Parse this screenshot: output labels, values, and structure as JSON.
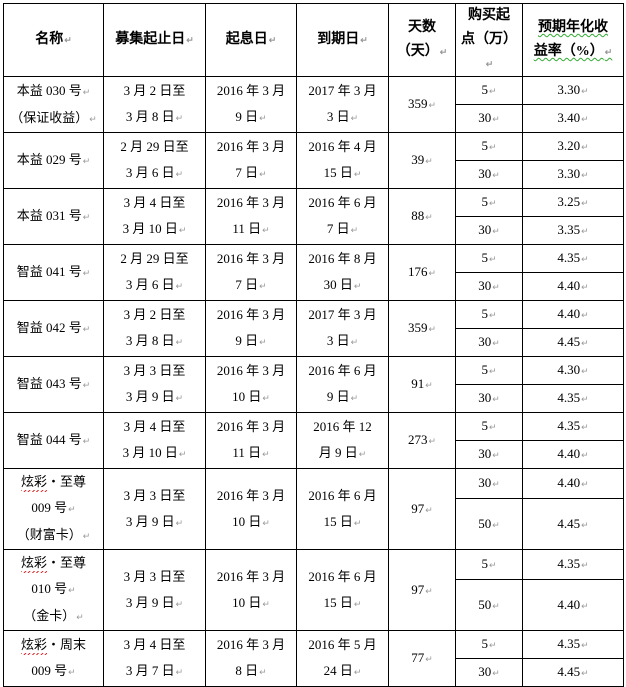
{
  "headers": [
    "名称",
    "募集起止日",
    "起息日",
    "到期日",
    [
      "天数",
      "（天）"
    ],
    [
      "购买起",
      "点（万）"
    ],
    [
      "预期年化收",
      "益率（%）"
    ]
  ],
  "products": [
    {
      "name": [
        "本益 030 号",
        "（保证收益）"
      ],
      "raise": [
        "3 月 2 日至",
        "3 月 8 日"
      ],
      "start": [
        "2016 年 3 月",
        "9 日"
      ],
      "maturity": [
        "2017 年 3 月",
        "3 日"
      ],
      "days": "359",
      "tiers": [
        {
          "min": "5",
          "rate": "3.30"
        },
        {
          "min": "30",
          "rate": "3.40"
        }
      ]
    },
    {
      "name": [
        "本益 029 号"
      ],
      "raise": [
        "2 月 29 日至",
        "3 月 6 日"
      ],
      "start": [
        "2016 年 3 月",
        "7 日"
      ],
      "maturity": [
        "2016 年 4 月",
        "15 日"
      ],
      "days": "39",
      "tiers": [
        {
          "min": "5",
          "rate": "3.20"
        },
        {
          "min": "30",
          "rate": "3.30"
        }
      ]
    },
    {
      "name": [
        "本益 031 号"
      ],
      "raise": [
        "3 月 4 日至",
        "3 月 10 日"
      ],
      "start": [
        "2016 年 3 月",
        "11 日"
      ],
      "maturity": [
        "2016 年 6 月",
        "7 日"
      ],
      "days": "88",
      "tiers": [
        {
          "min": "5",
          "rate": "3.25"
        },
        {
          "min": "30",
          "rate": "3.35"
        }
      ]
    },
    {
      "name": [
        "智益 041 号"
      ],
      "raise": [
        "2 月 29 日至",
        "3 月 6 日"
      ],
      "start": [
        "2016 年 3 月",
        "7 日"
      ],
      "maturity": [
        "2016 年 8 月",
        "30 日"
      ],
      "days": "176",
      "tiers": [
        {
          "min": "5",
          "rate": "4.35"
        },
        {
          "min": "30",
          "rate": "4.40"
        }
      ]
    },
    {
      "name": [
        "智益 042 号"
      ],
      "raise": [
        "3 月 2 日至",
        "3 月 8 日"
      ],
      "start": [
        "2016 年 3 月",
        "9 日"
      ],
      "maturity": [
        "2017 年 3 月",
        "3 日"
      ],
      "days": "359",
      "tiers": [
        {
          "min": "5",
          "rate": "4.40"
        },
        {
          "min": "30",
          "rate": "4.45"
        }
      ]
    },
    {
      "name": [
        "智益 043 号"
      ],
      "raise": [
        "3 月 3 日至",
        "3 月 9 日"
      ],
      "start": [
        "2016 年 3 月",
        "10 日"
      ],
      "maturity": [
        "2016 年 6 月",
        "9 日"
      ],
      "days": "91",
      "tiers": [
        {
          "min": "5",
          "rate": "4.30"
        },
        {
          "min": "30",
          "rate": "4.35"
        }
      ]
    },
    {
      "name": [
        "智益 044 号"
      ],
      "raise": [
        "3 月 4 日至",
        "3 月 10 日"
      ],
      "start": [
        "2016 年 3 月",
        "11 日"
      ],
      "maturity": [
        "2016 年 12",
        "月 9 日"
      ],
      "days": "273",
      "tiers": [
        {
          "min": "5",
          "rate": "4.35"
        },
        {
          "min": "30",
          "rate": "4.40"
        }
      ]
    },
    {
      "name": [
        "炫彩・至尊",
        "009 号",
        "（财富卡）"
      ],
      "raise": [
        "3 月 3 日至",
        "3 月 9 日"
      ],
      "start": [
        "2016 年 3 月",
        "10 日"
      ],
      "maturity": [
        "2016 年 6 月",
        "15 日"
      ],
      "days": "97",
      "tiers": [
        {
          "min": "30",
          "rate": "4.40"
        },
        {
          "min": "50",
          "rate": "4.45"
        }
      ]
    },
    {
      "name": [
        "炫彩・至尊",
        "010 号",
        "（金卡）"
      ],
      "raise": [
        "3 月 3 日至",
        "3 月 9 日"
      ],
      "start": [
        "2016 年 3 月",
        "10 日"
      ],
      "maturity": [
        "2016 年 6 月",
        "15 日"
      ],
      "days": "97",
      "tiers": [
        {
          "min": "5",
          "rate": "4.35"
        },
        {
          "min": "50",
          "rate": "4.40"
        }
      ]
    },
    {
      "name": [
        "炫彩・周末",
        "009 号"
      ],
      "raise": [
        "3 月 4 日至",
        "3 月 7 日"
      ],
      "start": [
        "2016 年 3 月",
        "8 日"
      ],
      "maturity": [
        "2016 年 5 月",
        "24 日"
      ],
      "days": "77",
      "tiers": [
        {
          "min": "5",
          "rate": "4.35"
        },
        {
          "min": "30",
          "rate": "4.45"
        }
      ]
    }
  ]
}
